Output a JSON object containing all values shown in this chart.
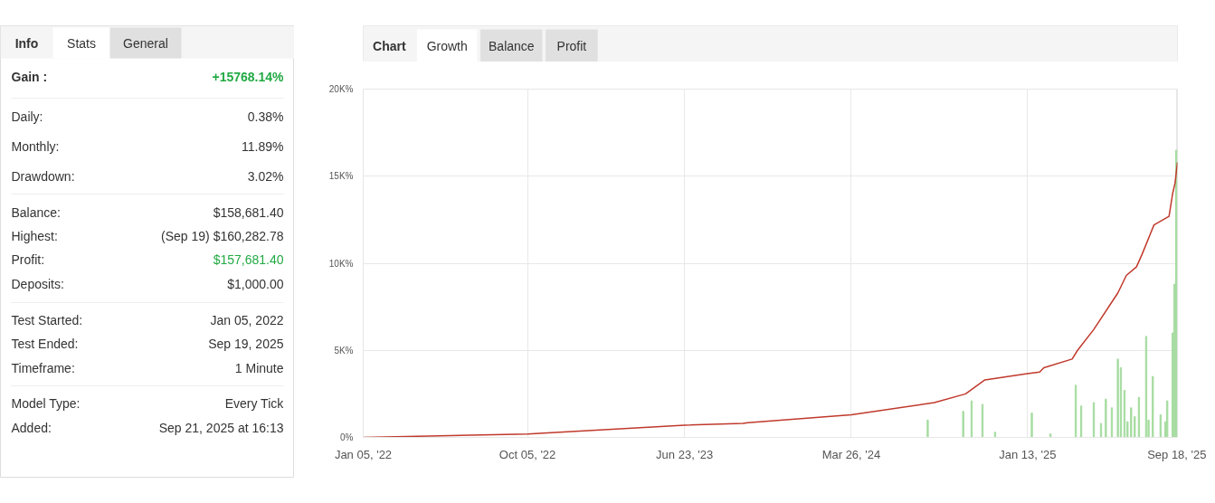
{
  "chart_data": [
    {
      "type": "other",
      "annotations": [
        "Info",
        "Stats",
        "General",
        "Gain :",
        "+15768.14%",
        "Daily:",
        "0.38%",
        "Monthly:",
        "11.89%",
        "Drawdown:",
        "3.02%",
        "Balance:",
        "$158,681.40",
        "Highest:",
        "(Sep 19) $160,282.78",
        "Profit:",
        "$157,681.40",
        "Deposits:",
        "$1,000.00",
        "Test Started:",
        "Jan 05, 2022",
        "Test Ended:",
        "Sep 19, 2025",
        "Timeframe:",
        "1 Minute",
        "Model Type:",
        "Every Tick",
        "Added:",
        "Sep 21, 2025 at 16:13"
      ]
    },
    {
      "type": "line",
      "annotations": [
        "Chart",
        "Growth",
        "Balance",
        "Profit"
      ],
      "xlim": [
        "2022-01-05",
        "2025-09-19"
      ],
      "ylim": [
        0,
        20000
      ],
      "xticks": [
        {
          "value": "2022-01-05",
          "label": "Jan 05, '22"
        },
        {
          "value": "2022-10-05",
          "label": "Oct 05, '22"
        },
        {
          "value": "2023-06-23",
          "label": "Jun 23, '23"
        },
        {
          "value": "2024-03-26",
          "label": "Mar 26, '24"
        },
        {
          "value": "2025-01-13",
          "label": "Jan 13, '25"
        },
        {
          "value": "2025-09-18",
          "label": "Sep 18, '25"
        }
      ],
      "yticks": [
        {
          "value": 0,
          "label": "0%"
        },
        {
          "value": 5000,
          "label": "5K%"
        },
        {
          "value": 10000,
          "label": "10K%"
        },
        {
          "value": 15000,
          "label": "15K%"
        },
        {
          "value": 20000,
          "label": "20K%"
        }
      ],
      "grid": true,
      "series": [
        {
          "type": "bar",
          "color": "#a6dca0",
          "x": [
            "2024-07-31",
            "2024-09-28",
            "2024-10-12",
            "2024-10-30",
            "2024-11-20",
            "2025-01-20",
            "2025-02-20",
            "2025-04-03",
            "2025-04-12",
            "2025-05-03",
            "2025-05-15",
            "2025-05-23",
            "2025-06-02",
            "2025-06-12",
            "2025-06-17",
            "2025-06-23",
            "2025-06-28",
            "2025-07-04",
            "2025-07-10",
            "2025-07-17",
            "2025-07-29",
            "2025-08-02",
            "2025-08-09",
            "2025-08-22",
            "2025-08-30",
            "2025-09-02",
            "2025-09-11",
            "2025-09-14",
            "2025-09-17"
          ],
          "values": [
            1000,
            1500,
            2100,
            1900,
            300,
            1400,
            200,
            3000,
            1800,
            2000,
            800,
            2200,
            1700,
            4500,
            4000,
            2700,
            900,
            1700,
            1200,
            2300,
            5800,
            1000,
            3500,
            1300,
            900,
            2100,
            6000,
            8800,
            16500
          ]
        },
        {
          "type": "line",
          "color": "#c0392b",
          "x": [
            "2022-01-05",
            "2022-10-05",
            "2023-06-23",
            "2023-09-28",
            "2023-10-06",
            "2024-03-26",
            "2024-08-11",
            "2024-10-02",
            "2024-11-03",
            "2025-01-10",
            "2025-02-02",
            "2025-02-09",
            "2025-03-28",
            "2025-04-06",
            "2025-05-03",
            "2025-06-12",
            "2025-06-26",
            "2025-07-13",
            "2025-07-22",
            "2025-08-11",
            "2025-09-05",
            "2025-09-11",
            "2025-09-15",
            "2025-09-19"
          ],
          "values": [
            0,
            200,
            700,
            800,
            850,
            1300,
            2000,
            2500,
            3300,
            3650,
            3750,
            4000,
            4500,
            5000,
            6200,
            8300,
            9300,
            9800,
            10500,
            12200,
            12700,
            14000,
            14600,
            15800
          ]
        }
      ]
    }
  ]
}
